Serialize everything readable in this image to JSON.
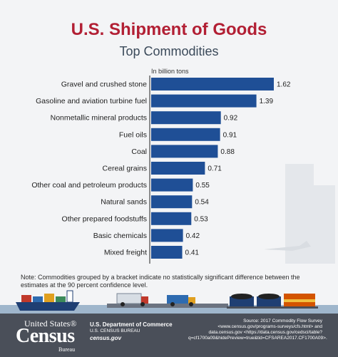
{
  "title": "U.S. Shipment of Goods",
  "subtitle": "Top Commodities",
  "chart_data": {
    "type": "bar",
    "orientation": "horizontal",
    "unit_label": "In billion tons",
    "categories": [
      "Gravel and crushed stone",
      "Gasoline and aviation turbine fuel",
      "Nonmetallic mineral products",
      "Fuel oils",
      "Coal",
      "Cereal grains",
      "Other coal and petroleum products",
      "Natural sands",
      "Other prepared foodstuffs",
      "Basic chemicals",
      "Mixed freight"
    ],
    "values": [
      1.62,
      1.39,
      0.92,
      0.91,
      0.88,
      0.71,
      0.55,
      0.54,
      0.53,
      0.42,
      0.41
    ],
    "xlim": [
      0,
      1.62
    ],
    "bar_color": "#1f4f96"
  },
  "note": "Note: Commodities grouped by a bracket indicate no statistically significant difference between the estimates at the 90 percent confidence level.",
  "footer": {
    "logo_top": "United States®",
    "logo_main": "Census",
    "logo_sub": "Bureau",
    "department": "U.S. Department of Commerce",
    "bureau": "U.S. CENSUS BUREAU",
    "website": "census.gov",
    "source": "Source: 2017 Commodity Flow Survey <www.census.gov/programs-surveys/cfs.html> and data.census.gov <https://data.census.gov/cedsci/table?q=cf1700a09&hidePreview=true&tid=CFSAREA2017.CF1700A09>."
  }
}
